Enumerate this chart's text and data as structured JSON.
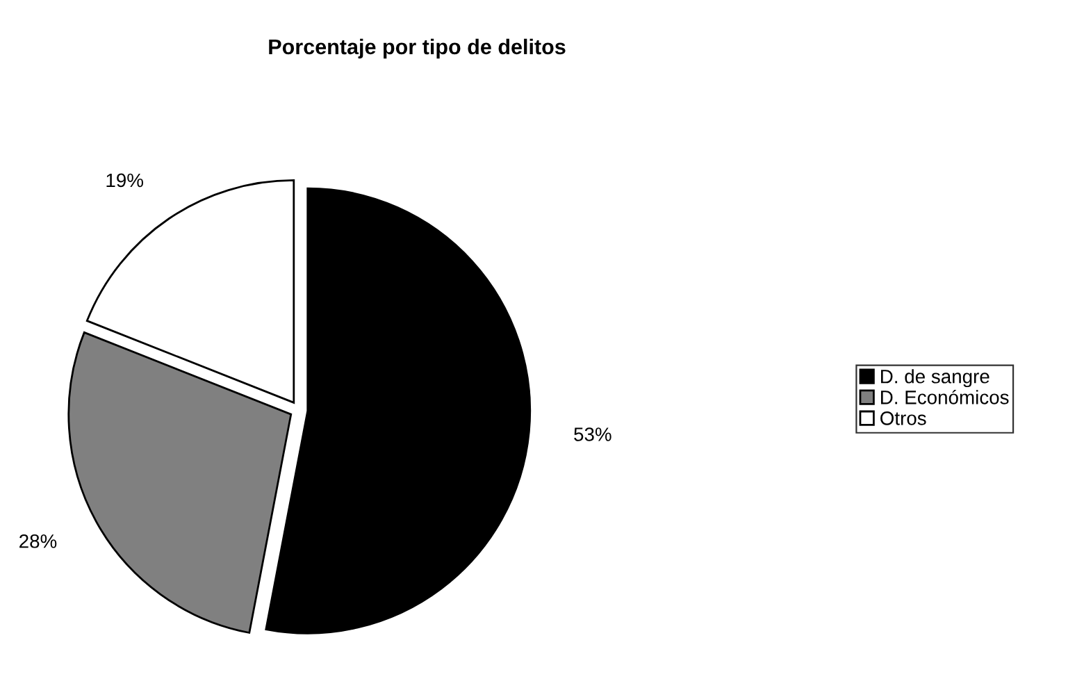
{
  "chart_data": {
    "type": "pie",
    "title": "Porcentaje por tipo de delitos",
    "categories": [
      "D. de sangre",
      "D. Económicos",
      "Otros"
    ],
    "values": [
      53,
      28,
      19
    ],
    "colors": [
      "#000000",
      "#808080",
      "#ffffff"
    ],
    "value_labels": [
      "53%",
      "28%",
      "19%"
    ],
    "legend": "right"
  }
}
